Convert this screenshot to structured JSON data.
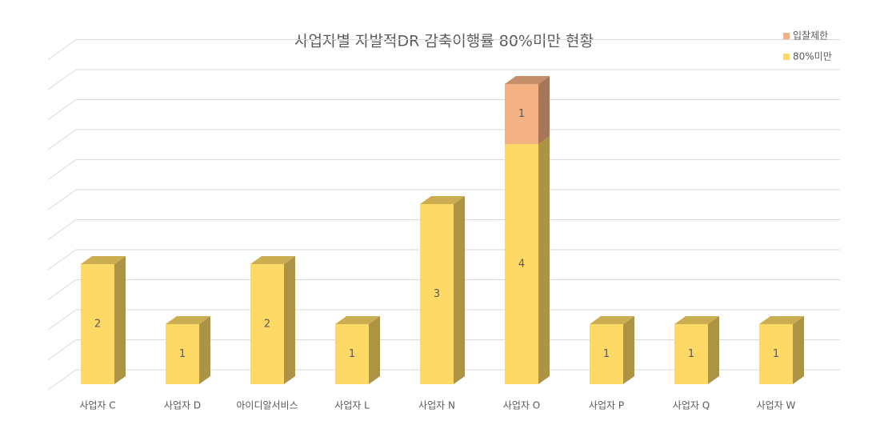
{
  "chart_data": {
    "type": "bar3d-stacked",
    "title": "사업자별 자발적DR 감축이행률 80%미만 현황",
    "categories": [
      "사업자 C",
      "사업자 D",
      "아이디알서비스",
      "사업자 L",
      "사업자 N",
      "사업자 O",
      "사업자 P",
      "사업자 Q",
      "사업자 W"
    ],
    "series": [
      {
        "name": "80%미만",
        "color": "#ffd966",
        "values": [
          2,
          1,
          2,
          1,
          3,
          4,
          1,
          1,
          1
        ]
      },
      {
        "name": "입찰제한",
        "color": "#f4b183",
        "values": [
          null,
          null,
          null,
          null,
          null,
          1,
          null,
          null,
          null
        ]
      }
    ],
    "ylim": [
      0,
      5.5
    ],
    "yticks": [
      0,
      0.5,
      1,
      1.5,
      2,
      2.5,
      3,
      3.5,
      4,
      4.5,
      5,
      5.5
    ],
    "grid": true,
    "legend": "top-right"
  }
}
